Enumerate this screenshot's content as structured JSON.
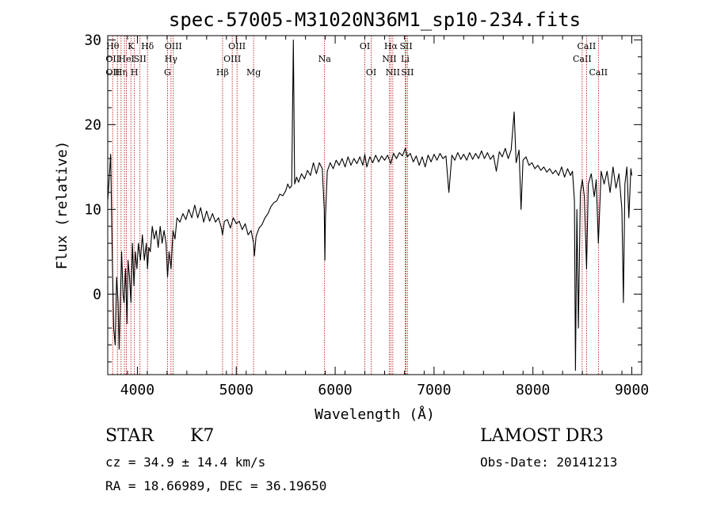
{
  "chart_data": {
    "type": "line",
    "title": "spec-57005-M31020N36M1_sp10-234.fits",
    "xlabel": "Wavelength (Å)",
    "ylabel": "Flux (relative)",
    "xlim": [
      3700,
      9100
    ],
    "ylim": [
      -9.5,
      30.5
    ],
    "xticks": [
      4000,
      5000,
      6000,
      7000,
      8000,
      9000
    ],
    "yticks": [
      0,
      10,
      20,
      30
    ],
    "xminor_step": 200,
    "yminor_step": 2,
    "grid": false,
    "series": [
      {
        "name": "spectrum",
        "points": [
          [
            3700,
            11.0
          ],
          [
            3730,
            16.5
          ],
          [
            3745,
            5.0
          ],
          [
            3760,
            -4.0
          ],
          [
            3775,
            -6.0
          ],
          [
            3790,
            2.0
          ],
          [
            3805,
            -1.0
          ],
          [
            3815,
            -6.5
          ],
          [
            3825,
            -2.0
          ],
          [
            3840,
            5.0
          ],
          [
            3855,
            0.0
          ],
          [
            3865,
            -1.0
          ],
          [
            3880,
            3.0
          ],
          [
            3895,
            -3.5
          ],
          [
            3905,
            4.0
          ],
          [
            3920,
            2.0
          ],
          [
            3935,
            -1.0
          ],
          [
            3950,
            6.0
          ],
          [
            3965,
            1.0
          ],
          [
            3980,
            5.0
          ],
          [
            3995,
            3.0
          ],
          [
            4010,
            6.0
          ],
          [
            4030,
            4.0
          ],
          [
            4050,
            7.0
          ],
          [
            4070,
            4.0
          ],
          [
            4090,
            6.0
          ],
          [
            4102,
            3.0
          ],
          [
            4115,
            5.5
          ],
          [
            4130,
            5.0
          ],
          [
            4150,
            8.0
          ],
          [
            4170,
            6.5
          ],
          [
            4190,
            7.5
          ],
          [
            4210,
            5.5
          ],
          [
            4230,
            8.0
          ],
          [
            4250,
            6.0
          ],
          [
            4270,
            7.5
          ],
          [
            4290,
            6.0
          ],
          [
            4305,
            2.0
          ],
          [
            4320,
            5.0
          ],
          [
            4340,
            3.0
          ],
          [
            4360,
            7.5
          ],
          [
            4380,
            6.5
          ],
          [
            4400,
            9.0
          ],
          [
            4430,
            8.5
          ],
          [
            4460,
            9.5
          ],
          [
            4490,
            8.8
          ],
          [
            4520,
            10.0
          ],
          [
            4550,
            9.0
          ],
          [
            4580,
            10.5
          ],
          [
            4610,
            9.0
          ],
          [
            4640,
            10.2
          ],
          [
            4670,
            8.5
          ],
          [
            4700,
            9.8
          ],
          [
            4730,
            8.6
          ],
          [
            4760,
            9.5
          ],
          [
            4790,
            8.5
          ],
          [
            4820,
            9.0
          ],
          [
            4850,
            7.8
          ],
          [
            4861,
            7.0
          ],
          [
            4880,
            8.6
          ],
          [
            4910,
            8.8
          ],
          [
            4940,
            7.8
          ],
          [
            4970,
            9.0
          ],
          [
            5000,
            8.3
          ],
          [
            5030,
            8.6
          ],
          [
            5060,
            7.6
          ],
          [
            5090,
            8.3
          ],
          [
            5120,
            7.0
          ],
          [
            5150,
            7.5
          ],
          [
            5175,
            6.0
          ],
          [
            5183,
            4.5
          ],
          [
            5200,
            6.8
          ],
          [
            5230,
            7.8
          ],
          [
            5260,
            8.2
          ],
          [
            5290,
            9.0
          ],
          [
            5320,
            9.5
          ],
          [
            5350,
            10.3
          ],
          [
            5380,
            10.8
          ],
          [
            5410,
            11.0
          ],
          [
            5440,
            11.8
          ],
          [
            5470,
            11.6
          ],
          [
            5500,
            12.2
          ],
          [
            5520,
            13.0
          ],
          [
            5540,
            12.5
          ],
          [
            5560,
            12.8
          ],
          [
            5577,
            30.0
          ],
          [
            5590,
            13.0
          ],
          [
            5610,
            13.8
          ],
          [
            5630,
            13.2
          ],
          [
            5660,
            14.2
          ],
          [
            5690,
            13.6
          ],
          [
            5720,
            14.6
          ],
          [
            5750,
            14.0
          ],
          [
            5780,
            15.5
          ],
          [
            5810,
            14.2
          ],
          [
            5840,
            15.5
          ],
          [
            5870,
            14.8
          ],
          [
            5890,
            10.0
          ],
          [
            5896,
            4.0
          ],
          [
            5902,
            9.0
          ],
          [
            5920,
            14.5
          ],
          [
            5950,
            15.5
          ],
          [
            5980,
            14.8
          ],
          [
            6010,
            15.8
          ],
          [
            6040,
            15.2
          ],
          [
            6070,
            16.0
          ],
          [
            6100,
            15.0
          ],
          [
            6130,
            16.2
          ],
          [
            6160,
            15.2
          ],
          [
            6190,
            16.0
          ],
          [
            6220,
            15.4
          ],
          [
            6250,
            16.2
          ],
          [
            6280,
            15.2
          ],
          [
            6300,
            16.5
          ],
          [
            6320,
            15.0
          ],
          [
            6350,
            16.2
          ],
          [
            6380,
            15.5
          ],
          [
            6410,
            16.4
          ],
          [
            6440,
            15.6
          ],
          [
            6470,
            16.3
          ],
          [
            6500,
            15.8
          ],
          [
            6530,
            16.4
          ],
          [
            6563,
            15.4
          ],
          [
            6590,
            16.6
          ],
          [
            6620,
            16.0
          ],
          [
            6650,
            16.7
          ],
          [
            6680,
            16.3
          ],
          [
            6710,
            17.2
          ],
          [
            6730,
            16.2
          ],
          [
            6760,
            16.6
          ],
          [
            6790,
            15.6
          ],
          [
            6820,
            16.3
          ],
          [
            6850,
            15.2
          ],
          [
            6880,
            16.2
          ],
          [
            6910,
            15.0
          ],
          [
            6940,
            16.4
          ],
          [
            6970,
            15.6
          ],
          [
            7000,
            16.5
          ],
          [
            7030,
            15.8
          ],
          [
            7060,
            16.6
          ],
          [
            7090,
            16.0
          ],
          [
            7120,
            16.3
          ],
          [
            7150,
            12.0
          ],
          [
            7180,
            16.4
          ],
          [
            7210,
            15.8
          ],
          [
            7240,
            16.7
          ],
          [
            7270,
            15.9
          ],
          [
            7300,
            16.5
          ],
          [
            7330,
            15.8
          ],
          [
            7360,
            16.7
          ],
          [
            7390,
            15.9
          ],
          [
            7420,
            16.6
          ],
          [
            7450,
            16.0
          ],
          [
            7480,
            16.9
          ],
          [
            7510,
            16.0
          ],
          [
            7540,
            16.7
          ],
          [
            7570,
            15.9
          ],
          [
            7600,
            16.4
          ],
          [
            7630,
            14.5
          ],
          [
            7660,
            16.8
          ],
          [
            7690,
            16.2
          ],
          [
            7720,
            17.2
          ],
          [
            7750,
            16.0
          ],
          [
            7780,
            17.0
          ],
          [
            7810,
            21.5
          ],
          [
            7830,
            15.5
          ],
          [
            7860,
            17.0
          ],
          [
            7880,
            10.0
          ],
          [
            7900,
            15.8
          ],
          [
            7930,
            16.2
          ],
          [
            7960,
            15.2
          ],
          [
            7990,
            15.5
          ],
          [
            8020,
            14.8
          ],
          [
            8050,
            15.2
          ],
          [
            8080,
            14.6
          ],
          [
            8110,
            15.0
          ],
          [
            8140,
            14.4
          ],
          [
            8170,
            14.8
          ],
          [
            8200,
            14.2
          ],
          [
            8230,
            14.6
          ],
          [
            8260,
            14.0
          ],
          [
            8290,
            15.0
          ],
          [
            8320,
            13.8
          ],
          [
            8350,
            14.8
          ],
          [
            8380,
            14.0
          ],
          [
            8400,
            14.5
          ],
          [
            8420,
            11.0
          ],
          [
            8430,
            -9.0
          ],
          [
            8445,
            10.0
          ],
          [
            8460,
            -4.0
          ],
          [
            8480,
            12.0
          ],
          [
            8500,
            13.5
          ],
          [
            8520,
            11.5
          ],
          [
            8542,
            3.0
          ],
          [
            8560,
            13.0
          ],
          [
            8590,
            14.2
          ],
          [
            8620,
            11.5
          ],
          [
            8640,
            13.5
          ],
          [
            8662,
            6.0
          ],
          [
            8690,
            14.5
          ],
          [
            8720,
            13.0
          ],
          [
            8750,
            14.5
          ],
          [
            8780,
            12.0
          ],
          [
            8810,
            15.0
          ],
          [
            8840,
            12.5
          ],
          [
            8870,
            14.2
          ],
          [
            8900,
            10.0
          ],
          [
            8915,
            -1.0
          ],
          [
            8930,
            13.0
          ],
          [
            8950,
            15.0
          ],
          [
            8970,
            9.0
          ],
          [
            8990,
            14.8
          ],
          [
            9000,
            14.0
          ]
        ]
      }
    ],
    "lines": [
      {
        "wl": 3750,
        "labels": [
          {
            "row": 1,
            "text": "Hθ"
          },
          {
            "row": 2,
            "text": "OII"
          },
          {
            "row": 3,
            "text": "OII"
          }
        ]
      },
      {
        "wl": 3798,
        "labels": []
      },
      {
        "wl": 3835,
        "labels": [
          {
            "row": 3,
            "text": "Hη"
          }
        ]
      },
      {
        "wl": 3869,
        "labels": []
      },
      {
        "wl": 3889,
        "labels": [
          {
            "row": 2,
            "text": "HeI"
          }
        ]
      },
      {
        "wl": 3934,
        "labels": [
          {
            "row": 1,
            "text": "K"
          }
        ]
      },
      {
        "wl": 3970,
        "labels": [
          {
            "row": 3,
            "text": "H"
          }
        ]
      },
      {
        "wl": 4026,
        "labels": [
          {
            "row": 2,
            "text": "SII"
          }
        ]
      },
      {
        "wl": 4102,
        "labels": [
          {
            "row": 1,
            "text": "Hδ"
          }
        ]
      },
      {
        "wl": 4304,
        "labels": [
          {
            "row": 3,
            "text": "G"
          }
        ]
      },
      {
        "wl": 4340,
        "labels": [
          {
            "row": 2,
            "text": "Hγ"
          }
        ]
      },
      {
        "wl": 4363,
        "labels": [
          {
            "row": 1,
            "text": "OIII"
          }
        ]
      },
      {
        "wl": 4861,
        "labels": [
          {
            "row": 3,
            "text": "Hβ"
          }
        ]
      },
      {
        "wl": 4959,
        "labels": [
          {
            "row": 2,
            "text": "OIII"
          }
        ]
      },
      {
        "wl": 5007,
        "labels": [
          {
            "row": 1,
            "text": "OIII"
          }
        ]
      },
      {
        "wl": 5175,
        "labels": [
          {
            "row": 3,
            "text": "Mg"
          }
        ]
      },
      {
        "wl": 5893,
        "labels": [
          {
            "row": 2,
            "text": "Na"
          }
        ]
      },
      {
        "wl": 6300,
        "labels": [
          {
            "row": 1,
            "text": "OI"
          }
        ]
      },
      {
        "wl": 6364,
        "labels": [
          {
            "row": 3,
            "text": "OI"
          }
        ]
      },
      {
        "wl": 6548,
        "labels": [
          {
            "row": 2,
            "text": "NII"
          }
        ]
      },
      {
        "wl": 6563,
        "labels": [
          {
            "row": 1,
            "text": "Hα"
          }
        ]
      },
      {
        "wl": 6583,
        "labels": [
          {
            "row": 3,
            "text": "NII"
          }
        ]
      },
      {
        "wl": 6708,
        "labels": [
          {
            "row": 2,
            "text": "Li"
          }
        ]
      },
      {
        "wl": 6717,
        "labels": [
          {
            "row": 1,
            "text": "SII"
          }
        ]
      },
      {
        "wl": 6731,
        "labels": [
          {
            "row": 3,
            "text": "SII"
          }
        ]
      },
      {
        "wl": 8498,
        "labels": [
          {
            "row": 2,
            "text": "CaII"
          }
        ]
      },
      {
        "wl": 8542,
        "labels": [
          {
            "row": 1,
            "text": "CaII"
          }
        ]
      },
      {
        "wl": 8662,
        "labels": [
          {
            "row": 3,
            "text": "CaII"
          }
        ]
      }
    ],
    "colors": {
      "spectrum": "#000000",
      "marker": "#b30000",
      "axis": "#000000"
    }
  },
  "info": {
    "object_class": "STAR",
    "subclass": "K7",
    "survey": "LAMOST DR3",
    "redshift": "cz = 34.9 ± 14.4 km/s",
    "obs_date": "Obs-Date: 20141213",
    "coords": "RA =  18.66989, DEC =  36.19650"
  }
}
